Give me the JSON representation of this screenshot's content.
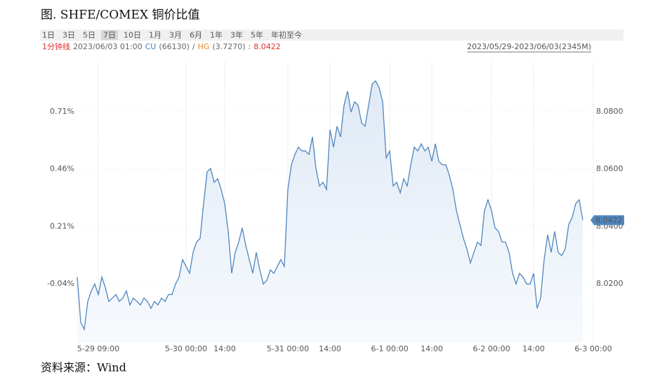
{
  "chart_data": {
    "type": "line",
    "title": "图. SHFE/COMEX 铜价比值",
    "categories": [
      null,
      null,
      null,
      null,
      null,
      null,
      "5-29 09:00",
      null,
      null,
      null,
      null,
      null,
      null,
      null,
      null,
      null,
      null,
      null,
      null,
      null,
      null,
      null,
      null,
      null,
      null,
      null,
      null,
      null,
      null,
      null,
      null,
      "5-30 00:00",
      null,
      null,
      null,
      null,
      null,
      null,
      null,
      null,
      null,
      null,
      "14:00",
      null,
      null,
      null,
      null,
      null,
      null,
      null,
      null,
      null,
      null,
      null,
      null,
      null,
      null,
      null,
      null,
      null,
      "5-31 00:00",
      null,
      null,
      null,
      null,
      null,
      null,
      null,
      null,
      null,
      null,
      null,
      "14:00",
      null,
      null,
      null,
      null,
      null,
      null,
      null,
      null,
      null,
      null,
      null,
      null,
      null,
      null,
      null,
      null,
      "6-1 00:00",
      null,
      null,
      null,
      null,
      null,
      null,
      null,
      null,
      null,
      null,
      null,
      "14:00",
      null,
      null,
      null,
      null,
      null,
      null,
      null,
      null,
      null,
      null,
      null,
      null,
      null,
      null,
      null,
      null,
      "6-2 00:00",
      null,
      null,
      null,
      null,
      null,
      null,
      null,
      null,
      null,
      null,
      null,
      "14:00",
      null,
      null,
      null,
      null,
      null,
      null,
      null,
      null,
      null,
      null,
      null,
      null,
      null,
      null,
      null,
      null,
      "6-3 00:00"
    ],
    "series": [
      {
        "name": "SHFE/COMEX",
        "color": "#4f86c0",
        "axis": "y2",
        "values": [
          8.0224,
          8.0066,
          8.0042,
          8.0139,
          8.0176,
          8.02,
          8.0163,
          8.0224,
          8.0188,
          8.0139,
          8.0151,
          8.0163,
          8.0139,
          8.0151,
          8.0176,
          8.0127,
          8.0151,
          8.0139,
          8.0127,
          8.0151,
          8.0139,
          8.0115,
          8.0139,
          8.0127,
          8.0151,
          8.0139,
          8.0163,
          8.0163,
          8.02,
          8.0224,
          8.0285,
          8.0261,
          8.0237,
          8.031,
          8.0346,
          8.0359,
          8.048,
          8.059,
          8.0602,
          8.0554,
          8.0566,
          8.0529,
          8.048,
          8.0383,
          8.0237,
          8.031,
          8.0346,
          8.0395,
          8.0334,
          8.0285,
          8.0237,
          8.031,
          8.0249,
          8.02,
          8.0212,
          8.0249,
          8.0237,
          8.0261,
          8.0285,
          8.0261,
          8.0529,
          8.0615,
          8.0651,
          8.0676,
          8.0663,
          8.0663,
          8.0651,
          8.0712,
          8.0602,
          8.0541,
          8.0554,
          8.0529,
          8.0737,
          8.0676,
          8.0749,
          8.0712,
          8.0822,
          8.0871,
          8.0798,
          8.0834,
          8.0822,
          8.0761,
          8.0749,
          8.0822,
          8.0895,
          8.0907,
          8.0883,
          8.0834,
          8.0639,
          8.0663,
          8.0541,
          8.0554,
          8.0517,
          8.0566,
          8.0541,
          8.0615,
          8.0676,
          8.0663,
          8.0688,
          8.0663,
          8.0676,
          8.0627,
          8.0688,
          8.0627,
          8.0615,
          8.0615,
          8.0578,
          8.0529,
          8.0456,
          8.0407,
          8.0359,
          8.0322,
          8.0273,
          8.031,
          8.0346,
          8.0334,
          8.0456,
          8.0493,
          8.0456,
          8.0395,
          8.0383,
          8.0346,
          8.0346,
          8.031,
          8.0237,
          8.02,
          8.0237,
          8.0224,
          8.02,
          8.02,
          8.0237,
          8.0115,
          8.0151,
          8.0285,
          8.0371,
          8.031,
          8.0383,
          8.031,
          8.0298,
          8.0322,
          8.0407,
          8.0432,
          8.048,
          8.0493,
          8.0422,
          null,
          null,
          null
        ]
      }
    ],
    "ylim": [
      -0.296,
      0.966
    ],
    "yticks": [
      {
        "value": -0.04,
        "label": "-0.04%"
      },
      {
        "value": 0.21,
        "label": "0.21%"
      },
      {
        "value": 0.46,
        "label": "0.46%"
      },
      {
        "value": 0.71,
        "label": "0.71%"
      }
    ],
    "y2lim": [
      7.9995,
      8.1005
    ],
    "y2ticks": [
      {
        "value": 8.02,
        "label": "8.0200"
      },
      {
        "value": 8.04,
        "label": "8.0400"
      },
      {
        "value": 8.06,
        "label": "8.0600"
      },
      {
        "value": 8.08,
        "label": "8.0800"
      }
    ],
    "grid": true
  },
  "toolbar": {
    "tabs": [
      "1日",
      "3日",
      "5日",
      "7日",
      "10日",
      "1月",
      "3月",
      "6月",
      "1年",
      "3年",
      "5年",
      "年初至今"
    ],
    "selected": 3
  },
  "info": {
    "parts": [
      "1分钟线",
      "2023/06/03 01:00",
      "CU",
      "(66130)",
      "/",
      "HG",
      "(3.7270)",
      ":",
      "8.0422"
    ],
    "range": "2023/05/29-2023/06/03(2345M)"
  },
  "source": "资料来源：Wind"
}
